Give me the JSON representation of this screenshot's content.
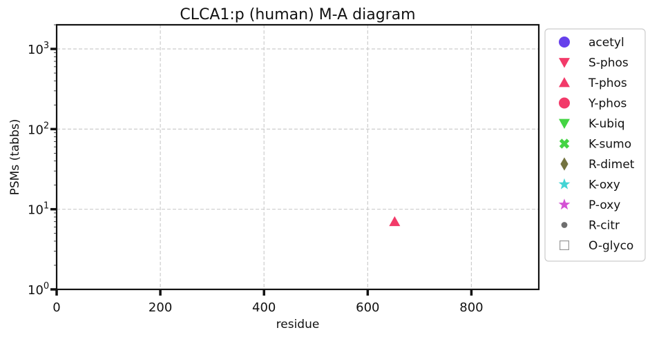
{
  "chart_data": {
    "type": "scatter",
    "title": "CLCA1:p (human) M-A diagram",
    "xlabel": "residue",
    "ylabel": "PSMs (tabbs)",
    "xlim": [
      0,
      930
    ],
    "ylim": [
      1,
      2000
    ],
    "yscale": "log",
    "grid": true,
    "legend_position": "right",
    "x_ticks": [
      0,
      200,
      400,
      600,
      800
    ],
    "x_tick_labels": [
      "0",
      "200",
      "400",
      "600",
      "800"
    ],
    "y_ticks": [
      1,
      10,
      100,
      1000
    ],
    "y_tick_base": "10",
    "y_tick_exponents": [
      "0",
      "1",
      "2",
      "3"
    ],
    "series": [
      {
        "name": "acetyl",
        "marker": "circle",
        "color": "#4b1fe8",
        "points": []
      },
      {
        "name": "S-phos",
        "marker": "triangle-down",
        "color": "#f0184f",
        "points": []
      },
      {
        "name": "T-phos",
        "marker": "triangle-up",
        "color": "#f0184f",
        "points": [
          [
            652,
            7
          ]
        ]
      },
      {
        "name": "Y-phos",
        "marker": "circle",
        "color": "#f0184f",
        "points": []
      },
      {
        "name": "K-ubiq",
        "marker": "triangle-down",
        "color": "#22cc22",
        "points": []
      },
      {
        "name": "K-sumo",
        "marker": "x",
        "color": "#22cc22",
        "points": []
      },
      {
        "name": "R-dimet",
        "marker": "diamond",
        "color": "#5c5a1e",
        "points": []
      },
      {
        "name": "K-oxy",
        "marker": "star",
        "color": "#22cccc",
        "points": []
      },
      {
        "name": "P-oxy",
        "marker": "star",
        "color": "#cc33cc",
        "points": []
      },
      {
        "name": "R-citr",
        "marker": "small-circle",
        "color": "#555555",
        "points": []
      },
      {
        "name": "O-glyco",
        "marker": "square-open",
        "color": "#999999",
        "points": []
      }
    ]
  }
}
